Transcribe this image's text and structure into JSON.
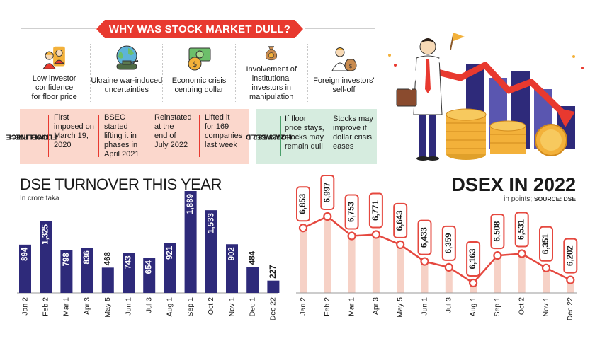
{
  "header": {
    "title": "WHY WAS STOCK MARKET DULL?"
  },
  "reasons": [
    {
      "icon": "investors-icon",
      "line1": "Low investor confidence",
      "line2": "for floor price"
    },
    {
      "icon": "globe-tank-icon",
      "line1": "Ukraine war-induced",
      "line2": "uncertainties"
    },
    {
      "icon": "dollar-note-icon",
      "line1": "Economic crisis",
      "line2": "centring dollar"
    },
    {
      "icon": "money-bag-icon",
      "line1": "Involvement of institutional",
      "line2": "investors in manipulation"
    },
    {
      "icon": "foreign-investor-icon",
      "line1": "Foreign investors'",
      "line2": "sell-off"
    }
  ],
  "timeline": {
    "label_line1": "TIMELINE:",
    "label_line2": "FLOOR PRICE",
    "steps": [
      [
        "First",
        "imposed on",
        "March 19,",
        "2020"
      ],
      [
        "BSEC started",
        "lifting it in",
        "phases in",
        "April 2021"
      ],
      [
        "Reinstated",
        "at the",
        "end of",
        "July 2022"
      ],
      [
        "Lifted it",
        "for 169",
        "companies",
        "last week"
      ]
    ]
  },
  "prediction": {
    "label_line1": "HOW WOULD",
    "label_line2": "2023 BE?",
    "steps": [
      [
        "If floor",
        "price stays,",
        "stocks may",
        "remain dull"
      ],
      [
        "Stocks may",
        "improve if",
        "dollar crisis",
        "eases"
      ]
    ]
  },
  "colors": {
    "accent_red": "#e8392f",
    "bar_purple": "#2e2a7a",
    "line_red": "#e5483f",
    "stem_pink": "#f6d1c6"
  },
  "chart_data": [
    {
      "type": "bar",
      "title": "DSE TURNOVER THIS YEAR",
      "subtitle": "In crore taka",
      "categories": [
        "Jan 2",
        "Feb 2",
        "Mar 1",
        "Apr 3",
        "May 5",
        "Jun 1",
        "Jul 3",
        "Aug 1",
        "Sep 1",
        "Oct 2",
        "Nov 1",
        "Dec 1",
        "Dec 22"
      ],
      "values": [
        894,
        1325,
        798,
        836,
        468,
        743,
        654,
        921,
        1889,
        1533,
        902,
        484,
        227
      ],
      "labels": [
        "894",
        "1,325",
        "798",
        "836",
        "468",
        "743",
        "654",
        "921",
        "1,889",
        "1,533",
        "902",
        "484",
        "227"
      ],
      "ylim": [
        0,
        1889
      ]
    },
    {
      "type": "line",
      "title": "DSEX IN 2022",
      "subtitle": "in points;",
      "source": "SOURCE: DSE",
      "categories": [
        "Jan 2",
        "Feb 2",
        "Mar 1",
        "Apr 3",
        "May 5",
        "Jun 1",
        "Jul 3",
        "Aug 1",
        "Sep 1",
        "Oct 2",
        "Nov 1",
        "Dec 22"
      ],
      "values": [
        6853,
        6997,
        6753,
        6771,
        6643,
        6433,
        6359,
        6163,
        6508,
        6531,
        6351,
        6202
      ],
      "labels": [
        "6,853",
        "6,997",
        "6,753",
        "6,771",
        "6,643",
        "6,433",
        "6,359",
        "6,163",
        "6,508",
        "6,531",
        "6,351",
        "6,202"
      ],
      "ylim": [
        6163,
        6997
      ]
    }
  ]
}
